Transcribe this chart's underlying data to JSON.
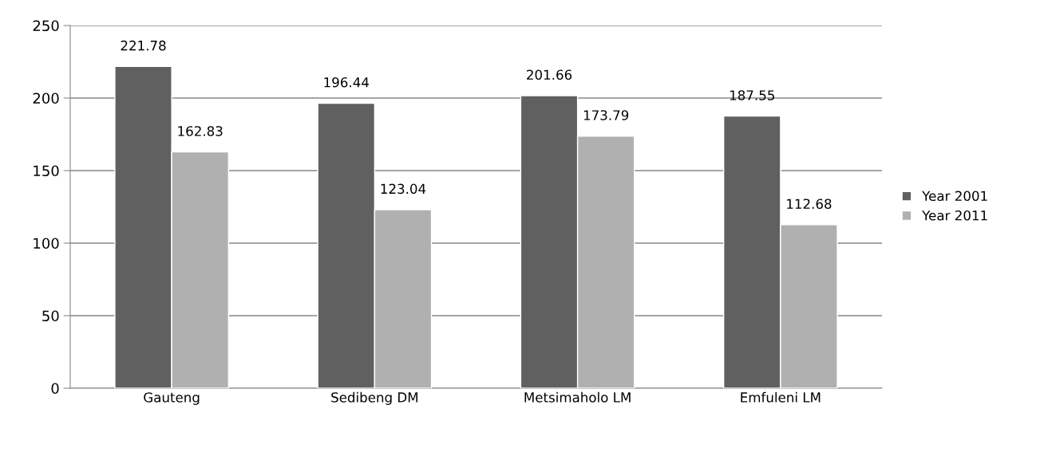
{
  "chart_data": {
    "type": "bar",
    "categories": [
      "Gauteng",
      "Sedibeng DM",
      "Metsimaholo LM",
      "Emfuleni LM"
    ],
    "series": [
      {
        "name": "Year 2001",
        "color": "#606060",
        "values": [
          221.78,
          196.44,
          201.66,
          187.55
        ]
      },
      {
        "name": "Year 2011",
        "color": "#b0b0b0",
        "values": [
          162.83,
          123.04,
          173.79,
          112.68
        ]
      }
    ],
    "ylim": [
      0,
      250
    ],
    "yticks": [
      0,
      50,
      100,
      150,
      200,
      250
    ],
    "grid": "y",
    "legend": "right",
    "data_labels": true
  }
}
